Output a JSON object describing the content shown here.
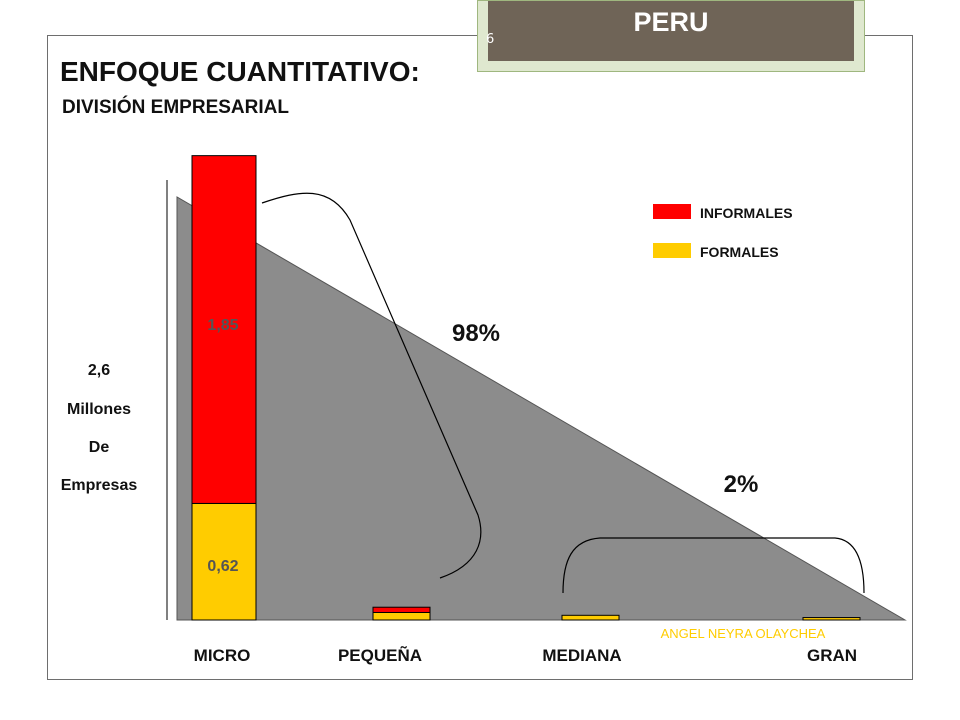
{
  "header": {
    "country": "PERU",
    "slide_number": "6"
  },
  "title": "ENFOQUE CUANTITATIVO:",
  "subtitle": "DIVISIÓN EMPRESARIAL",
  "y_note": [
    "2,6",
    "Millones",
    "De",
    "Empresas"
  ],
  "author": "ANGEL NEYRA OLAYCHEA",
  "colors": {
    "informales": "#ff0000",
    "formales": "#ffcc00",
    "triangle": "#8c8c8c"
  },
  "chart_data": {
    "type": "bar",
    "stacked": true,
    "categories": [
      "MICRO",
      "PEQUEÑA",
      "MEDIANA",
      "GRAN"
    ],
    "series": [
      {
        "name": "FORMALES",
        "values": [
          0.62,
          0.04,
          0.025,
          0.013
        ]
      },
      {
        "name": "INFORMALES",
        "values": [
          1.85,
          0.028,
          0,
          0
        ]
      }
    ],
    "data_labels": {
      "MICRO_INFORMALES": "1,85",
      "MICRO_FORMALES": "0,62"
    },
    "legend": {
      "placement": "top-right",
      "entries": [
        "INFORMALES",
        "FORMALES"
      ]
    },
    "annotations": [
      "98%",
      "2%"
    ],
    "ylim": [
      0,
      2.5
    ]
  }
}
